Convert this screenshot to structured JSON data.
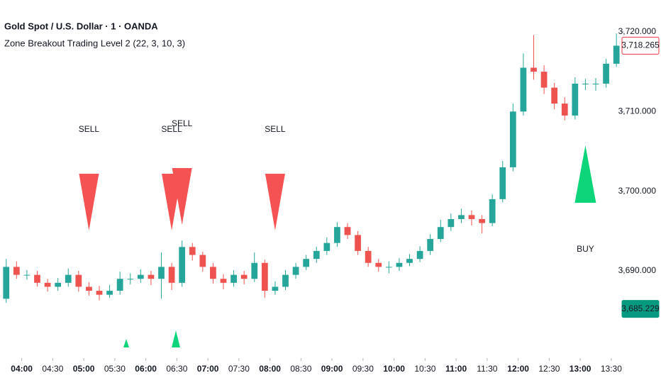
{
  "header": {
    "symbol": "Gold Spot / U.S. Dollar · 1 · OANDA",
    "indicator": "Zone Breakout Trading Level 2 (22, 3, 10, 3)"
  },
  "chart_data": {
    "type": "candlestick",
    "x": [
      "03:45",
      "03:55",
      "04:05",
      "04:15",
      "04:25",
      "04:35",
      "04:45",
      "04:55",
      "05:05",
      "05:15",
      "05:25",
      "05:35",
      "05:45",
      "05:55",
      "06:05",
      "06:15",
      "06:25",
      "06:35",
      "06:45",
      "06:55",
      "07:05",
      "07:15",
      "07:25",
      "07:35",
      "07:45",
      "07:55",
      "08:05",
      "08:15",
      "08:25",
      "08:35",
      "08:45",
      "08:55",
      "09:05",
      "09:15",
      "09:25",
      "09:35",
      "09:45",
      "09:55",
      "10:05",
      "10:15",
      "10:25",
      "10:35",
      "10:45",
      "10:55",
      "11:05",
      "11:15",
      "11:25",
      "11:35",
      "11:45",
      "11:55",
      "12:05",
      "12:15",
      "12:25",
      "12:35",
      "12:45",
      "12:55",
      "13:05",
      "13:15",
      "13:25",
      "13:35"
    ],
    "open": [
      3686.5,
      3690.5,
      3689.5,
      3689.5,
      3688.5,
      3688,
      3688.5,
      3689.5,
      3688,
      3687.5,
      3687,
      3687.5,
      3689,
      3689,
      3689.5,
      3689,
      3690.5,
      3688.5,
      3693,
      3692,
      3690.5,
      3689,
      3688.5,
      3689.5,
      3689,
      3691,
      3687.5,
      3688,
      3689.5,
      3690.5,
      3691.5,
      3692.5,
      3693.5,
      3695.5,
      3694.5,
      3692.5,
      3691,
      3690.5,
      3690.5,
      3691,
      3691.5,
      3692.5,
      3694,
      3695.5,
      3696.5,
      3697,
      3696.5,
      3696,
      3699,
      3703,
      3710,
      3715.5,
      3715,
      3713,
      3711,
      3709.5,
      3713.5,
      3713.5,
      3713.5,
      3716
    ],
    "high": [
      3691.5,
      3691.2,
      3690.1,
      3690.0,
      3689.0,
      3689.1,
      3690.3,
      3690.0,
      3688.6,
      3688.1,
      3688.2,
      3689.9,
      3689.7,
      3690.2,
      3690.0,
      3692.3,
      3691.0,
      3693.8,
      3693.5,
      3692.4,
      3691.0,
      3689.6,
      3690.1,
      3690.0,
      3692.3,
      3691.4,
      3688.7,
      3690.1,
      3691.0,
      3692.0,
      3693.0,
      3694.2,
      3696.1,
      3696.0,
      3695.0,
      3693.0,
      3691.5,
      3691.2,
      3691.6,
      3692.1,
      3693.1,
      3694.6,
      3696.4,
      3697.2,
      3697.8,
      3697.6,
      3697.0,
      3699.6,
      3703.8,
      3711.0,
      3717.3,
      3719.6,
      3715.8,
      3713.6,
      3711.8,
      3714.3,
      3714.1,
      3714.2,
      3716.6,
      3719.8
    ],
    "low": [
      3686.0,
      3689.0,
      3688.9,
      3688.0,
      3687.4,
      3687.5,
      3688.0,
      3687.4,
      3686.9,
      3686.3,
      3686.6,
      3687.0,
      3688.3,
      3688.5,
      3688.2,
      3686.5,
      3687.6,
      3688.0,
      3691.3,
      3689.9,
      3688.4,
      3687.7,
      3688.0,
      3688.3,
      3688.6,
      3686.6,
      3687.0,
      3687.6,
      3689.0,
      3690.1,
      3691.0,
      3692.0,
      3693.0,
      3694.0,
      3692.0,
      3690.5,
      3689.9,
      3689.7,
      3690.0,
      3690.6,
      3691.1,
      3692.0,
      3693.6,
      3695.0,
      3696.0,
      3695.7,
      3694.7,
      3695.6,
      3698.6,
      3702.5,
      3709.5,
      3714.0,
      3712.2,
      3710.3,
      3708.9,
      3709.0,
      3712.7,
      3712.6,
      3713.0,
      3715.6
    ],
    "close": [
      3690.5,
      3689.5,
      3689.5,
      3688.5,
      3688,
      3688.5,
      3689.5,
      3688,
      3687.5,
      3687,
      3687.5,
      3689,
      3689,
      3689.5,
      3689,
      3690.5,
      3688.5,
      3693,
      3692,
      3690.5,
      3689,
      3688.5,
      3689.5,
      3689,
      3691,
      3687.5,
      3688,
      3689.5,
      3690.5,
      3691.5,
      3692.5,
      3693.5,
      3695.5,
      3694.5,
      3692.5,
      3691,
      3690.5,
      3690.5,
      3691,
      3691.5,
      3692.5,
      3694,
      3695.5,
      3696.5,
      3697,
      3696.5,
      3696,
      3699,
      3703,
      3710,
      3715.5,
      3715,
      3713,
      3711,
      3709.5,
      3713.5,
      3713.5,
      3713.5,
      3716,
      3718.265
    ],
    "up_color": "#26a69a",
    "down_color": "#ef5350",
    "xlim": [
      "03:39",
      "13:39"
    ],
    "xticks": [
      "04:00",
      "04:30",
      "05:00",
      "05:30",
      "06:00",
      "06:30",
      "07:00",
      "07:30",
      "08:00",
      "08:30",
      "09:00",
      "09:30",
      "10:00",
      "10:30",
      "11:00",
      "11:30",
      "12:00",
      "12:30",
      "13:00",
      "13:30"
    ],
    "ylim": [
      3679.05,
      3724.0
    ],
    "yticks": [
      {
        "value": 3690,
        "label": "3,690.000"
      },
      {
        "value": 3700,
        "label": "3,700.000"
      },
      {
        "value": 3710,
        "label": "3,710.000"
      },
      {
        "value": 3720,
        "label": "3,720.000"
      }
    ],
    "signals": [
      {
        "x": "05:05",
        "label": "SELL"
      },
      {
        "x": "06:25",
        "label": "SELL"
      },
      {
        "x": "06:35",
        "label": "SELL"
      },
      {
        "x": "08:05",
        "label": "SELL"
      },
      {
        "x": "13:05",
        "label": "BUY"
      }
    ],
    "price_markers": [
      {
        "value": 3718.265,
        "label": "3,718.265",
        "color": "#f23645",
        "style": "outline"
      },
      {
        "value": 3685.229,
        "label": "3,685.229",
        "color": "#089981",
        "style": "filled"
      }
    ]
  }
}
